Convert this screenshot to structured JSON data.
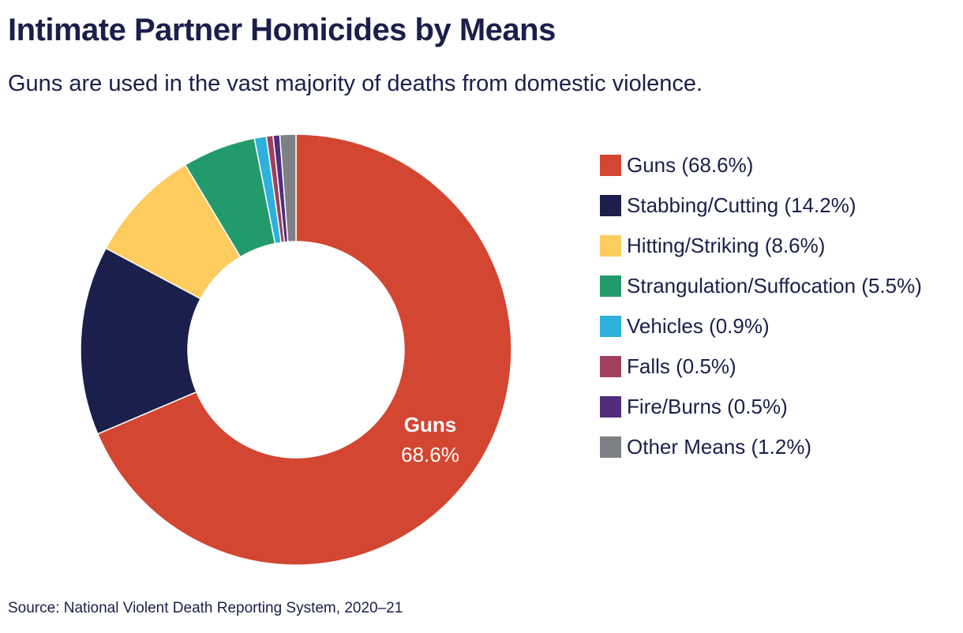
{
  "chart_data": {
    "type": "pie",
    "style": "donut",
    "title": "Intimate Partner Homicides by Means",
    "subtitle": "Guns are used in the vast majority of deaths from domestic violence.",
    "source": "Source: National Violent Death Reporting System, 2020–21",
    "categories": [
      "Guns",
      "Stabbing/Cutting",
      "Hitting/Striking",
      "Strangulation/Suffocation",
      "Vehicles",
      "Falls",
      "Fire/Burns",
      "Other Means"
    ],
    "values": [
      68.6,
      14.2,
      8.6,
      5.5,
      0.9,
      0.5,
      0.5,
      1.2
    ],
    "unit": "%",
    "colors": [
      "#d34631",
      "#1b1f4b",
      "#fdcb5e",
      "#239a6c",
      "#2fb0dc",
      "#a0405c",
      "#512d7c",
      "#7d8084"
    ],
    "legend_labels": [
      "Guns (68.6%)",
      "Stabbing/Cutting (14.2%)",
      "Hitting/Striking (8.6%)",
      "Strangulation/Suffocation (5.5%)",
      "Vehicles (0.9%)",
      "Falls (0.5%)",
      "Fire/Burns (0.5%)",
      "Other Means (1.2%)"
    ],
    "legend_position": "right",
    "annotation": {
      "label": "Guns",
      "value": "68.6%"
    }
  }
}
